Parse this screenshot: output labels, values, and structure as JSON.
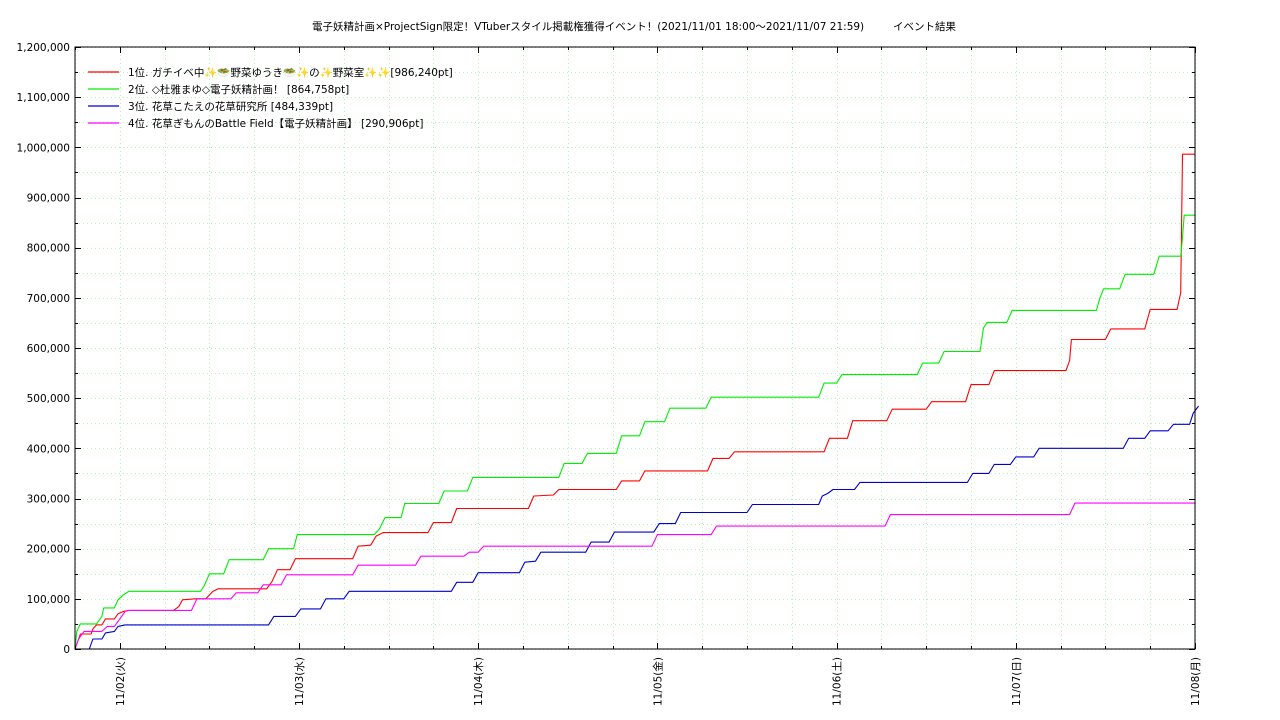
{
  "chart_data": {
    "type": "line",
    "title": "電子妖精計画×ProjectSign限定！VTuberスタイル掲載権獲得イベント！(2021/11/01 18:00〜2021/11/07 21:59)",
    "subtitle": "イベント結果",
    "xlabel": "",
    "ylabel": "",
    "x_unit": "days since 2021/11/01 00:00",
    "xlim": [
      0.75,
      7.0
    ],
    "ylim": [
      0,
      1200000
    ],
    "grid": true,
    "legend_position": "top-left",
    "x_ticks": [
      {
        "x": 1,
        "label": "11/02(火)"
      },
      {
        "x": 2,
        "label": "11/03(水)"
      },
      {
        "x": 3,
        "label": "11/04(木)"
      },
      {
        "x": 4,
        "label": "11/05(金)"
      },
      {
        "x": 5,
        "label": "11/06(土)"
      },
      {
        "x": 6,
        "label": "11/07(日)"
      },
      {
        "x": 7,
        "label": "11/08(月)"
      }
    ],
    "y_ticks": [
      {
        "y": 0,
        "label": "0"
      },
      {
        "y": 100000,
        "label": "100,000"
      },
      {
        "y": 200000,
        "label": "200,000"
      },
      {
        "y": 300000,
        "label": "300,000"
      },
      {
        "y": 400000,
        "label": "400,000"
      },
      {
        "y": 500000,
        "label": "500,000"
      },
      {
        "y": 600000,
        "label": "600,000"
      },
      {
        "y": 700000,
        "label": "700,000"
      },
      {
        "y": 800000,
        "label": "800,000"
      },
      {
        "y": 900000,
        "label": "900,000"
      },
      {
        "y": 1000000,
        "label": "1,000,000"
      },
      {
        "y": 1100000,
        "label": "1,100,000"
      },
      {
        "y": 1200000,
        "label": "1,200,000"
      }
    ],
    "series": [
      {
        "name": "1位. ガチイベ中✨🥗野菜ゆうき🥗✨の✨野菜室✨✨[986,240pt]",
        "color": "#ff0000",
        "points": [
          [
            0.75,
            0
          ],
          [
            0.76,
            10000
          ],
          [
            0.77,
            20000
          ],
          [
            0.78,
            30000
          ],
          [
            0.84,
            30000
          ],
          [
            0.85,
            40000
          ],
          [
            0.87,
            48000
          ],
          [
            0.9,
            48000
          ],
          [
            0.92,
            60000
          ],
          [
            0.97,
            60000
          ],
          [
            0.99,
            70000
          ],
          [
            1.02,
            75000
          ],
          [
            1.05,
            77000
          ],
          [
            1.3,
            77000
          ],
          [
            1.33,
            85000
          ],
          [
            1.35,
            98000
          ],
          [
            1.42,
            100000
          ],
          [
            1.48,
            100000
          ],
          [
            1.52,
            115000
          ],
          [
            1.55,
            120000
          ],
          [
            1.82,
            120000
          ],
          [
            1.85,
            135000
          ],
          [
            1.88,
            158000
          ],
          [
            1.95,
            158000
          ],
          [
            1.98,
            180000
          ],
          [
            2.3,
            180000
          ],
          [
            2.33,
            205000
          ],
          [
            2.4,
            207000
          ],
          [
            2.43,
            225000
          ],
          [
            2.47,
            232000
          ],
          [
            2.72,
            232000
          ],
          [
            2.75,
            252000
          ],
          [
            2.85,
            252000
          ],
          [
            2.88,
            280000
          ],
          [
            3.28,
            280000
          ],
          [
            3.31,
            305000
          ],
          [
            3.42,
            307000
          ],
          [
            3.45,
            318000
          ],
          [
            3.77,
            318000
          ],
          [
            3.8,
            335000
          ],
          [
            3.9,
            335000
          ],
          [
            3.93,
            355000
          ],
          [
            4.28,
            355000
          ],
          [
            4.31,
            380000
          ],
          [
            4.4,
            380000
          ],
          [
            4.43,
            393000
          ],
          [
            4.93,
            393000
          ],
          [
            4.96,
            420000
          ],
          [
            5.06,
            420000
          ],
          [
            5.09,
            455000
          ],
          [
            5.28,
            455000
          ],
          [
            5.31,
            478000
          ],
          [
            5.5,
            478000
          ],
          [
            5.53,
            493000
          ],
          [
            5.72,
            493000
          ],
          [
            5.75,
            527000
          ],
          [
            5.85,
            527000
          ],
          [
            5.88,
            555000
          ],
          [
            6.28,
            555000
          ],
          [
            6.3,
            575000
          ],
          [
            6.31,
            617000
          ],
          [
            6.5,
            617000
          ],
          [
            6.53,
            638000
          ],
          [
            6.72,
            638000
          ],
          [
            6.75,
            677000
          ],
          [
            6.9,
            677000
          ],
          [
            6.92,
            710000
          ],
          [
            6.93,
            986240
          ],
          [
            7.0,
            986240
          ]
        ]
      },
      {
        "name": "2位. ◇杜雅まゆ◇電子妖精計画！ [864,758pt]",
        "color": "#00ee00",
        "points": [
          [
            0.75,
            0
          ],
          [
            0.76,
            35000
          ],
          [
            0.78,
            50000
          ],
          [
            0.87,
            50000
          ],
          [
            0.9,
            65000
          ],
          [
            0.91,
            82000
          ],
          [
            0.97,
            82000
          ],
          [
            0.99,
            98000
          ],
          [
            1.02,
            108000
          ],
          [
            1.05,
            115000
          ],
          [
            1.45,
            115000
          ],
          [
            1.47,
            125000
          ],
          [
            1.5,
            150000
          ],
          [
            1.58,
            150000
          ],
          [
            1.61,
            178000
          ],
          [
            1.8,
            178000
          ],
          [
            1.83,
            200000
          ],
          [
            1.97,
            200000
          ],
          [
            1.99,
            228000
          ],
          [
            2.42,
            228000
          ],
          [
            2.45,
            240000
          ],
          [
            2.48,
            262000
          ],
          [
            2.57,
            262000
          ],
          [
            2.59,
            290000
          ],
          [
            2.78,
            290000
          ],
          [
            2.81,
            315000
          ],
          [
            2.94,
            315000
          ],
          [
            2.97,
            342000
          ],
          [
            3.45,
            342000
          ],
          [
            3.48,
            370000
          ],
          [
            3.58,
            370000
          ],
          [
            3.61,
            390000
          ],
          [
            3.77,
            390000
          ],
          [
            3.8,
            425000
          ],
          [
            3.9,
            425000
          ],
          [
            3.93,
            453000
          ],
          [
            4.04,
            453000
          ],
          [
            4.07,
            480000
          ],
          [
            4.27,
            480000
          ],
          [
            4.3,
            502000
          ],
          [
            4.9,
            502000
          ],
          [
            4.93,
            530000
          ],
          [
            5.0,
            530000
          ],
          [
            5.03,
            547000
          ],
          [
            5.45,
            547000
          ],
          [
            5.48,
            570000
          ],
          [
            5.57,
            570000
          ],
          [
            5.6,
            593000
          ],
          [
            5.8,
            593000
          ],
          [
            5.82,
            640000
          ],
          [
            5.84,
            651000
          ],
          [
            5.95,
            651000
          ],
          [
            5.98,
            675000
          ],
          [
            6.45,
            675000
          ],
          [
            6.47,
            700000
          ],
          [
            6.49,
            718000
          ],
          [
            6.58,
            718000
          ],
          [
            6.61,
            747000
          ],
          [
            6.77,
            747000
          ],
          [
            6.8,
            783000
          ],
          [
            6.92,
            783000
          ],
          [
            6.93,
            820000
          ],
          [
            6.94,
            864758
          ],
          [
            7.0,
            864758
          ]
        ]
      },
      {
        "name": "3位. 花草こたえの花草研究所 [484,339pt]",
        "color": "#0000cc",
        "points": [
          [
            0.75,
            0
          ],
          [
            0.83,
            0
          ],
          [
            0.85,
            20000
          ],
          [
            0.9,
            20000
          ],
          [
            0.92,
            32000
          ],
          [
            0.97,
            35000
          ],
          [
            0.99,
            45000
          ],
          [
            1.03,
            48000
          ],
          [
            1.83,
            48000
          ],
          [
            1.86,
            65000
          ],
          [
            1.98,
            65000
          ],
          [
            2.01,
            80000
          ],
          [
            2.12,
            80000
          ],
          [
            2.15,
            100000
          ],
          [
            2.25,
            100000
          ],
          [
            2.28,
            115000
          ],
          [
            2.85,
            115000
          ],
          [
            2.88,
            133000
          ],
          [
            2.97,
            133000
          ],
          [
            3.0,
            152000
          ],
          [
            3.23,
            152000
          ],
          [
            3.26,
            173000
          ],
          [
            3.32,
            175000
          ],
          [
            3.35,
            193000
          ],
          [
            3.6,
            193000
          ],
          [
            3.63,
            213000
          ],
          [
            3.73,
            213000
          ],
          [
            3.76,
            233000
          ],
          [
            3.98,
            233000
          ],
          [
            4.01,
            250000
          ],
          [
            4.1,
            250000
          ],
          [
            4.13,
            272000
          ],
          [
            4.5,
            272000
          ],
          [
            4.53,
            288000
          ],
          [
            4.9,
            288000
          ],
          [
            4.92,
            305000
          ],
          [
            4.95,
            310000
          ],
          [
            4.98,
            318000
          ],
          [
            5.1,
            318000
          ],
          [
            5.13,
            332000
          ],
          [
            5.73,
            332000
          ],
          [
            5.76,
            350000
          ],
          [
            5.85,
            350000
          ],
          [
            5.88,
            368000
          ],
          [
            5.97,
            368000
          ],
          [
            6.0,
            383000
          ],
          [
            6.1,
            383000
          ],
          [
            6.13,
            400000
          ],
          [
            6.6,
            400000
          ],
          [
            6.63,
            420000
          ],
          [
            6.72,
            420000
          ],
          [
            6.75,
            435000
          ],
          [
            6.85,
            435000
          ],
          [
            6.88,
            448000
          ],
          [
            6.97,
            448000
          ],
          [
            6.99,
            470000
          ],
          [
            7.02,
            484339
          ]
        ]
      },
      {
        "name": "4位. 花草ぎもんのBattle Field【電子妖精計画】 [290,906pt]",
        "color": "#ff00ff",
        "points": [
          [
            0.75,
            0
          ],
          [
            0.77,
            20000
          ],
          [
            0.8,
            35000
          ],
          [
            0.9,
            35000
          ],
          [
            0.93,
            45000
          ],
          [
            0.97,
            45000
          ],
          [
            1.0,
            60000
          ],
          [
            1.03,
            75000
          ],
          [
            1.05,
            77000
          ],
          [
            1.4,
            77000
          ],
          [
            1.43,
            100000
          ],
          [
            1.62,
            100000
          ],
          [
            1.65,
            112000
          ],
          [
            1.77,
            112000
          ],
          [
            1.8,
            128000
          ],
          [
            1.9,
            128000
          ],
          [
            1.93,
            148000
          ],
          [
            2.3,
            148000
          ],
          [
            2.33,
            167000
          ],
          [
            2.65,
            167000
          ],
          [
            2.68,
            185000
          ],
          [
            2.92,
            185000
          ],
          [
            2.95,
            193000
          ],
          [
            3.0,
            193000
          ],
          [
            3.03,
            205000
          ],
          [
            3.97,
            205000
          ],
          [
            4.0,
            228000
          ],
          [
            4.3,
            228000
          ],
          [
            4.33,
            245000
          ],
          [
            5.27,
            245000
          ],
          [
            5.3,
            268000
          ],
          [
            6.3,
            268000
          ],
          [
            6.33,
            290906
          ],
          [
            7.0,
            290906
          ]
        ]
      }
    ]
  }
}
